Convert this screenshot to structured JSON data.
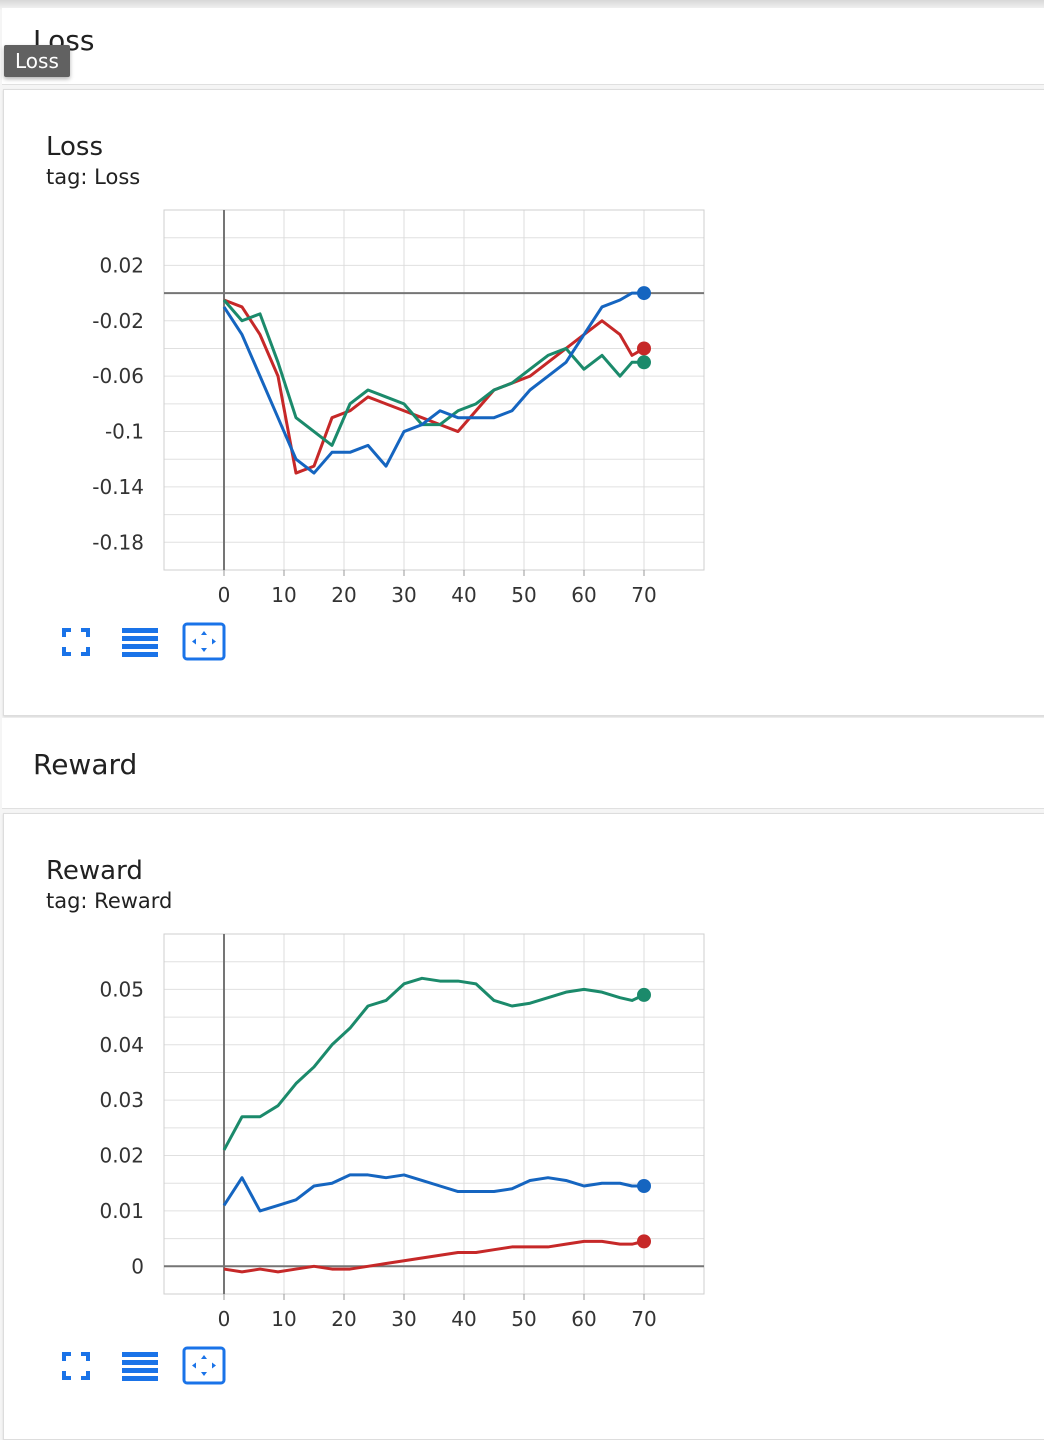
{
  "tooltip": "Loss",
  "colors": {
    "red": "#c62828",
    "green": "#1b8a6b",
    "blue": "#1565c0",
    "button": "#1a73e8"
  },
  "icons": [
    "fullscreen-icon",
    "data-table-icon",
    "fit-domain-icon"
  ],
  "sections": [
    {
      "header": "Loss",
      "card": {
        "title": "Loss",
        "tag": "tag: Loss",
        "chart_data": {
          "type": "line",
          "title": "Loss",
          "xlabel": "",
          "ylabel": "",
          "xlim": [
            -10,
            80
          ],
          "ylim": [
            -0.2,
            0.06
          ],
          "xticks": [
            0,
            10,
            20,
            30,
            40,
            50,
            60,
            70
          ],
          "yticks": [
            0.02,
            -0.02,
            -0.06,
            -0.1,
            -0.14,
            -0.18
          ],
          "ytick_labels": [
            "0.02",
            "-0.02",
            "-0.06",
            "-0.1",
            "-0.14",
            "-0.18"
          ],
          "grid": true,
          "series": [
            {
              "color": "red",
              "x": [
                0,
                3,
                6,
                9,
                12,
                15,
                18,
                21,
                24,
                27,
                30,
                33,
                36,
                39,
                42,
                45,
                48,
                51,
                54,
                57,
                60,
                63,
                66,
                68,
                70
              ],
              "y": [
                -0.005,
                -0.01,
                -0.03,
                -0.06,
                -0.13,
                -0.125,
                -0.09,
                -0.085,
                -0.075,
                -0.08,
                -0.085,
                -0.09,
                -0.095,
                -0.1,
                -0.085,
                -0.07,
                -0.065,
                -0.06,
                -0.05,
                -0.04,
                -0.03,
                -0.02,
                -0.03,
                -0.045,
                -0.04
              ]
            },
            {
              "color": "green",
              "x": [
                0,
                3,
                6,
                9,
                12,
                15,
                18,
                21,
                24,
                27,
                30,
                33,
                36,
                39,
                42,
                45,
                48,
                51,
                54,
                57,
                60,
                63,
                66,
                68,
                70
              ],
              "y": [
                -0.005,
                -0.02,
                -0.015,
                -0.05,
                -0.09,
                -0.1,
                -0.11,
                -0.08,
                -0.07,
                -0.075,
                -0.08,
                -0.095,
                -0.095,
                -0.085,
                -0.08,
                -0.07,
                -0.065,
                -0.055,
                -0.045,
                -0.04,
                -0.055,
                -0.045,
                -0.06,
                -0.05,
                -0.05
              ]
            },
            {
              "color": "blue",
              "x": [
                0,
                3,
                6,
                9,
                12,
                15,
                18,
                21,
                24,
                27,
                30,
                33,
                36,
                39,
                42,
                45,
                48,
                51,
                54,
                57,
                60,
                63,
                66,
                68,
                70
              ],
              "y": [
                -0.01,
                -0.03,
                -0.06,
                -0.09,
                -0.12,
                -0.13,
                -0.115,
                -0.115,
                -0.11,
                -0.125,
                -0.1,
                -0.095,
                -0.085,
                -0.09,
                -0.09,
                -0.09,
                -0.085,
                -0.07,
                -0.06,
                -0.05,
                -0.03,
                -0.01,
                -0.005,
                0.0,
                0.0
              ]
            }
          ]
        }
      }
    },
    {
      "header": "Reward",
      "card": {
        "title": "Reward",
        "tag": "tag: Reward",
        "chart_data": {
          "type": "line",
          "title": "Reward",
          "xlabel": "",
          "ylabel": "",
          "xlim": [
            -10,
            80
          ],
          "ylim": [
            -0.005,
            0.06
          ],
          "xticks": [
            0,
            10,
            20,
            30,
            40,
            50,
            60,
            70
          ],
          "yticks": [
            0.05,
            0.04,
            0.03,
            0.02,
            0.01,
            0
          ],
          "ytick_labels": [
            "0.05",
            "0.04",
            "0.03",
            "0.02",
            "0.01",
            "0"
          ],
          "grid": true,
          "series": [
            {
              "color": "green",
              "x": [
                0,
                3,
                6,
                9,
                12,
                15,
                18,
                21,
                24,
                27,
                30,
                33,
                36,
                39,
                42,
                45,
                48,
                51,
                54,
                57,
                60,
                63,
                66,
                68,
                70
              ],
              "y": [
                0.021,
                0.027,
                0.027,
                0.029,
                0.033,
                0.036,
                0.04,
                0.043,
                0.047,
                0.048,
                0.051,
                0.052,
                0.0515,
                0.0515,
                0.051,
                0.048,
                0.047,
                0.0475,
                0.0485,
                0.0495,
                0.05,
                0.0495,
                0.0485,
                0.048,
                0.049
              ]
            },
            {
              "color": "blue",
              "x": [
                0,
                3,
                6,
                9,
                12,
                15,
                18,
                21,
                24,
                27,
                30,
                33,
                36,
                39,
                42,
                45,
                48,
                51,
                54,
                57,
                60,
                63,
                66,
                68,
                70
              ],
              "y": [
                0.011,
                0.016,
                0.01,
                0.011,
                0.012,
                0.0145,
                0.015,
                0.0165,
                0.0165,
                0.016,
                0.0165,
                0.0155,
                0.0145,
                0.0135,
                0.0135,
                0.0135,
                0.014,
                0.0155,
                0.016,
                0.0155,
                0.0145,
                0.015,
                0.015,
                0.0145,
                0.0145
              ]
            },
            {
              "color": "red",
              "x": [
                0,
                3,
                6,
                9,
                12,
                15,
                18,
                21,
                24,
                27,
                30,
                33,
                36,
                39,
                42,
                45,
                48,
                51,
                54,
                57,
                60,
                63,
                66,
                68,
                70
              ],
              "y": [
                -0.0005,
                -0.001,
                -0.0005,
                -0.001,
                -0.0005,
                0.0,
                -0.0005,
                -0.0005,
                0.0,
                0.0005,
                0.001,
                0.0015,
                0.002,
                0.0025,
                0.0025,
                0.003,
                0.0035,
                0.0035,
                0.0035,
                0.004,
                0.0045,
                0.0045,
                0.004,
                0.004,
                0.0045
              ]
            }
          ]
        }
      }
    }
  ]
}
